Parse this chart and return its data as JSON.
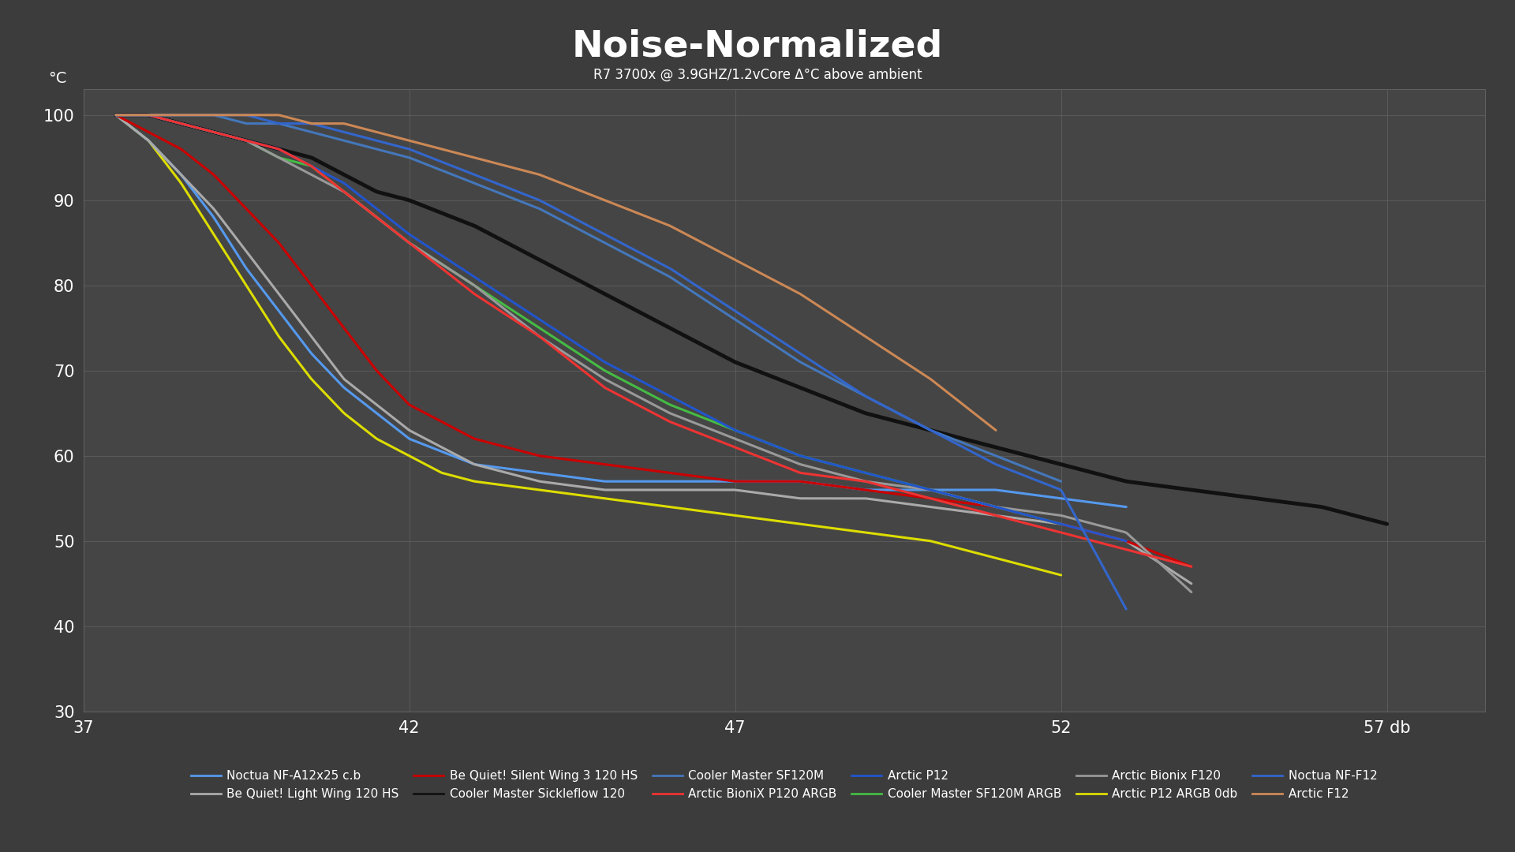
{
  "title": "Noise-Normalized",
  "subtitle": "R7 3700x @ 3.9GHZ/1.2vCore Δ°C above ambient",
  "ylabel": "°C",
  "xlim": [
    37,
    58.5
  ],
  "ylim": [
    30,
    103
  ],
  "xticks": [
    37,
    42,
    47,
    52,
    57
  ],
  "yticks": [
    30,
    40,
    50,
    60,
    70,
    80,
    90,
    100
  ],
  "background_color": "#3c3c3c",
  "plot_bg_color": "#454545",
  "grid_color": "#606060",
  "text_color": "#ffffff",
  "series": [
    {
      "name": "Arctic P12 ARGB 0db",
      "color": "#dddd00",
      "lw": 2.2,
      "x": [
        37.5,
        38.0,
        38.5,
        39.0,
        39.5,
        40.0,
        40.5,
        41.0,
        41.5,
        42.0,
        42.5,
        43.0,
        44.0,
        45.0,
        46.0,
        47.0,
        48.0,
        49.0,
        50.0,
        51.0,
        52.0
      ],
      "y": [
        100,
        97,
        92,
        86,
        80,
        74,
        69,
        65,
        62,
        60,
        58,
        57,
        56,
        55,
        54,
        53,
        52,
        51,
        50,
        48,
        46
      ]
    },
    {
      "name": "Noctua NF-A12x25 c.b",
      "color": "#5599ee",
      "lw": 2.2,
      "x": [
        37.5,
        38.0,
        38.5,
        39.0,
        39.5,
        40.0,
        40.5,
        41.0,
        41.5,
        42.0,
        43.0,
        44.0,
        45.0,
        46.0,
        47.0,
        48.0,
        49.0,
        50.0,
        51.0,
        52.0,
        53.0
      ],
      "y": [
        100,
        97,
        93,
        88,
        82,
        77,
        72,
        68,
        65,
        62,
        59,
        58,
        57,
        57,
        57,
        57,
        56,
        56,
        56,
        55,
        54
      ]
    },
    {
      "name": "Be Quiet! Light Wing 120 HS",
      "color": "#aaaaaa",
      "lw": 2.2,
      "x": [
        37.5,
        38.0,
        38.5,
        39.0,
        39.5,
        40.0,
        40.5,
        41.0,
        41.5,
        42.0,
        43.0,
        44.0,
        45.0,
        46.0,
        47.0,
        48.0,
        49.0,
        50.0,
        51.0,
        52.0,
        53.0,
        54.0
      ],
      "y": [
        100,
        97,
        93,
        89,
        84,
        79,
        74,
        69,
        66,
        63,
        59,
        57,
        56,
        56,
        56,
        55,
        55,
        54,
        53,
        52,
        50,
        45
      ]
    },
    {
      "name": "Be Quiet! Silent Wing 3 120 HS",
      "color": "#cc0000",
      "lw": 2.2,
      "x": [
        37.5,
        38.0,
        38.5,
        39.0,
        39.5,
        40.0,
        40.5,
        41.0,
        41.5,
        42.0,
        43.0,
        44.0,
        45.0,
        46.0,
        47.0,
        48.0,
        49.0,
        50.0,
        51.0,
        52.0,
        53.0,
        54.0
      ],
      "y": [
        100,
        98,
        96,
        93,
        89,
        85,
        80,
        75,
        70,
        66,
        62,
        60,
        59,
        58,
        57,
        57,
        56,
        55,
        54,
        52,
        50,
        47
      ]
    },
    {
      "name": "Cooler Master Sickleflow 120",
      "color": "#111111",
      "lw": 3.5,
      "x": [
        37.5,
        38.0,
        38.5,
        39.0,
        39.5,
        40.0,
        40.5,
        41.0,
        41.5,
        42.0,
        43.0,
        44.0,
        45.0,
        46.0,
        47.0,
        48.0,
        49.0,
        50.0,
        51.0,
        52.0,
        53.0,
        54.0,
        55.0,
        56.0,
        57.0
      ],
      "y": [
        100,
        100,
        99,
        98,
        97,
        96,
        95,
        93,
        91,
        90,
        87,
        83,
        79,
        75,
        71,
        68,
        65,
        63,
        61,
        59,
        57,
        56,
        55,
        54,
        52
      ]
    },
    {
      "name": "Cooler Master SF120M ARGB",
      "color": "#44bb44",
      "lw": 2.2,
      "x": [
        37.5,
        38.0,
        38.5,
        39.0,
        39.5,
        40.0,
        40.5,
        41.0,
        41.5,
        42.0,
        43.0,
        44.0,
        45.0,
        46.0,
        47.0,
        48.0,
        49.0,
        50.0,
        51.0,
        52.0
      ],
      "y": [
        100,
        100,
        99,
        98,
        97,
        95,
        94,
        91,
        88,
        85,
        80,
        75,
        70,
        66,
        63,
        60,
        58,
        56,
        54,
        52
      ]
    },
    {
      "name": "Arctic Bionix F120",
      "color": "#999999",
      "lw": 2.2,
      "x": [
        37.5,
        38.0,
        38.5,
        39.0,
        39.5,
        40.0,
        40.5,
        41.0,
        41.5,
        42.0,
        43.0,
        44.0,
        45.0,
        46.0,
        47.0,
        48.0,
        49.0,
        50.0,
        51.0,
        52.0,
        53.0,
        54.0
      ],
      "y": [
        100,
        100,
        99,
        98,
        97,
        95,
        93,
        91,
        88,
        85,
        80,
        74,
        69,
        65,
        62,
        59,
        57,
        56,
        54,
        53,
        51,
        44
      ]
    },
    {
      "name": "Arctic P12",
      "color": "#2255cc",
      "lw": 2.2,
      "x": [
        37.5,
        38.0,
        38.5,
        39.0,
        39.5,
        40.0,
        40.5,
        41.0,
        41.5,
        42.0,
        43.0,
        44.0,
        45.0,
        46.0,
        47.0,
        48.0,
        49.0,
        50.0,
        51.0,
        52.0,
        53.0
      ],
      "y": [
        100,
        100,
        99,
        98,
        97,
        96,
        94,
        92,
        89,
        86,
        81,
        76,
        71,
        67,
        63,
        60,
        58,
        56,
        54,
        52,
        50
      ]
    },
    {
      "name": "Arctic BioniX P120 ARGB",
      "color": "#ee3333",
      "lw": 2.2,
      "x": [
        37.5,
        38.0,
        38.5,
        39.0,
        39.5,
        40.0,
        40.5,
        41.0,
        41.5,
        42.0,
        43.0,
        44.0,
        45.0,
        46.0,
        47.0,
        48.0,
        49.0,
        50.0,
        51.0,
        52.0,
        53.0,
        54.0
      ],
      "y": [
        100,
        100,
        99,
        98,
        97,
        96,
        94,
        91,
        88,
        85,
        79,
        74,
        68,
        64,
        61,
        58,
        57,
        55,
        53,
        51,
        49,
        47
      ]
    },
    {
      "name": "Cooler Master SF120M",
      "color": "#4477bb",
      "lw": 2.2,
      "x": [
        37.5,
        38.0,
        38.5,
        39.0,
        39.5,
        40.0,
        40.5,
        41.0,
        41.5,
        42.0,
        43.0,
        44.0,
        45.0,
        46.0,
        47.0,
        48.0,
        49.0,
        50.0,
        51.0,
        52.0
      ],
      "y": [
        100,
        100,
        100,
        100,
        99,
        99,
        98,
        97,
        96,
        95,
        92,
        89,
        85,
        81,
        76,
        71,
        67,
        63,
        60,
        57
      ]
    },
    {
      "name": "Noctua NF-F12",
      "color": "#3366cc",
      "lw": 2.2,
      "x": [
        37.5,
        38.0,
        38.5,
        39.0,
        39.5,
        40.0,
        40.5,
        41.0,
        41.5,
        42.0,
        43.0,
        44.0,
        45.0,
        46.0,
        47.0,
        48.0,
        49.0,
        50.0,
        51.0,
        52.0,
        53.0
      ],
      "y": [
        100,
        100,
        100,
        100,
        100,
        99,
        99,
        98,
        97,
        96,
        93,
        90,
        86,
        82,
        77,
        72,
        67,
        63,
        59,
        56,
        42
      ]
    },
    {
      "name": "Arctic F12",
      "color": "#cc8855",
      "lw": 2.2,
      "x": [
        37.5,
        38.0,
        38.5,
        39.0,
        39.5,
        40.0,
        40.5,
        41.0,
        41.5,
        42.0,
        43.0,
        44.0,
        45.0,
        46.0,
        47.0,
        48.0,
        49.0,
        50.0,
        51.0
      ],
      "y": [
        100,
        100,
        100,
        100,
        100,
        100,
        99,
        99,
        98,
        97,
        95,
        93,
        90,
        87,
        83,
        79,
        74,
        69,
        63
      ]
    }
  ],
  "legend_order": [
    "Noctua NF-A12x25 c.b",
    "Be Quiet! Light Wing 120 HS",
    "Be Quiet! Silent Wing 3 120 HS",
    "Cooler Master Sickleflow 120",
    "Cooler Master SF120M",
    "Arctic BioniX P120 ARGB",
    "Arctic P12",
    "Cooler Master SF120M ARGB",
    "Arctic Bionix F120",
    "Arctic P12 ARGB 0db",
    "Noctua NF-F12",
    "Arctic F12"
  ]
}
